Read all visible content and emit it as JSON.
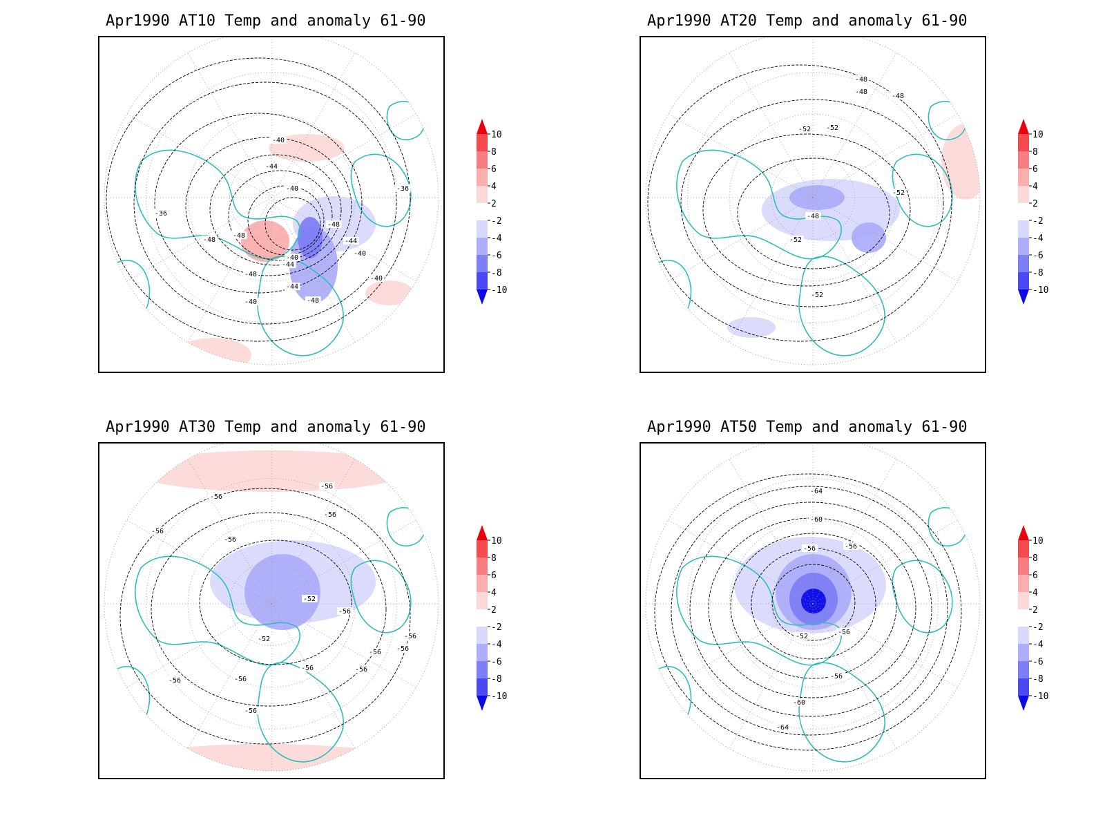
{
  "panels": [
    {
      "id": "at10",
      "title": "Apr1990 AT10 Temp and anomaly 61-90",
      "contour_labels": [
        "-40",
        "-44",
        "-40",
        "-36",
        "-48",
        "-40",
        "-48",
        "-44",
        "-48",
        "-40",
        "-44",
        "-48",
        "-48",
        "-40",
        "-40",
        "-44",
        "-40",
        "-36"
      ],
      "anomaly_patches": [
        {
          "sign": "positive",
          "level": 2
        },
        {
          "sign": "positive",
          "level": 2
        },
        {
          "sign": "positive",
          "level": 4
        },
        {
          "sign": "negative",
          "level": 2
        },
        {
          "sign": "negative",
          "level": 4
        },
        {
          "sign": "negative",
          "level": 6
        },
        {
          "sign": "positive",
          "level": 2
        },
        {
          "sign": "positive",
          "level": 2
        }
      ]
    },
    {
      "id": "at20",
      "title": "Apr1990 AT20 Temp and anomaly 61-90",
      "contour_labels": [
        "-48",
        "-48",
        "-48",
        "-52",
        "-52",
        "-52",
        "-48",
        "-52",
        "-52"
      ],
      "anomaly_patches": [
        {
          "sign": "negative",
          "level": 2
        },
        {
          "sign": "negative",
          "level": 4
        },
        {
          "sign": "negative",
          "level": 4
        },
        {
          "sign": "positive",
          "level": 2
        },
        {
          "sign": "positive",
          "level": 2
        },
        {
          "sign": "negative",
          "level": 2
        }
      ]
    },
    {
      "id": "at30",
      "title": "Apr1990 AT30 Temp and anomaly 61-90",
      "contour_labels": [
        "-56",
        "-56",
        "-56",
        "-56",
        "-56",
        "-52",
        "-56",
        "-52",
        "-56",
        "-56",
        "-56",
        "-56",
        "-56",
        "-56",
        "-56",
        "-56"
      ],
      "anomaly_patches": [
        {
          "sign": "positive",
          "level": 2
        },
        {
          "sign": "negative",
          "level": 2
        },
        {
          "sign": "negative",
          "level": 4
        },
        {
          "sign": "positive",
          "level": 2
        }
      ]
    },
    {
      "id": "at50",
      "title": "Apr1990 AT50 Temp and anomaly 61-90",
      "contour_labels": [
        "-64",
        "-60",
        "-56",
        "-56",
        "-52",
        "-56",
        "-56",
        "-60",
        "-64"
      ],
      "anomaly_patches": [
        {
          "sign": "negative",
          "level": 2
        },
        {
          "sign": "negative",
          "level": 4
        },
        {
          "sign": "negative",
          "level": 6
        },
        {
          "sign": "negative",
          "level": 10
        }
      ]
    }
  ],
  "colorbar": {
    "labels": [
      "10",
      "8",
      "6",
      "4",
      "2",
      "-2",
      "-4",
      "-6",
      "-8",
      "-10"
    ],
    "colors": [
      "#e8000b",
      "#f24a4f",
      "#f67e80",
      "#faaeae",
      "#fcd9d9",
      "#ffffff",
      "#d9d9fc",
      "#aeaefa",
      "#7e7ef6",
      "#4a4af2",
      "#0b0be8"
    ]
  },
  "colors": {
    "coastline": "#2ebdbd",
    "contour": "#000000",
    "grid": "#9a9a9a"
  }
}
